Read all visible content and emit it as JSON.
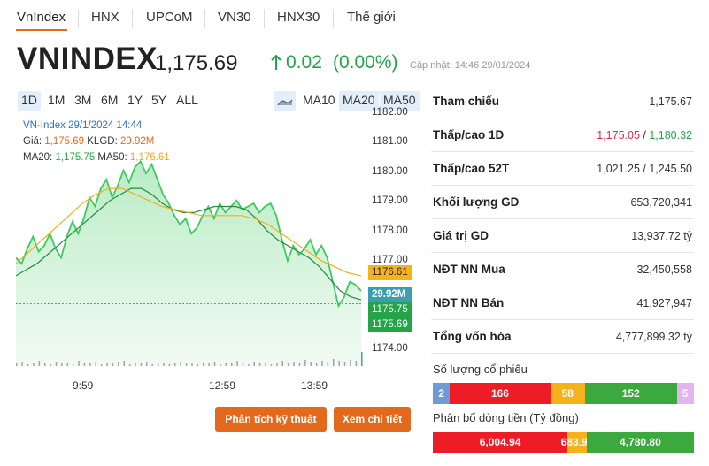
{
  "tabs": [
    {
      "label": "VnIndex",
      "active": true
    },
    {
      "label": "HNX"
    },
    {
      "label": "UPCoM"
    },
    {
      "label": "VN30"
    },
    {
      "label": "HNX30"
    },
    {
      "label": "Thế giới"
    }
  ],
  "header": {
    "name": "VNINDEX",
    "price": "1,175.69",
    "change": "0.02",
    "change_pct": "(0.00%)",
    "updated": "Cập nhật: 14:46 29/01/2024"
  },
  "ranges": [
    "1D",
    "1M",
    "3M",
    "6M",
    "1Y",
    "5Y",
    "ALL"
  ],
  "ma_buttons": [
    "MA10",
    "MA20",
    "MA50"
  ],
  "chart_legend": {
    "line1": "VN-Index 29/1/2024 14:44",
    "price_label": "Giá:",
    "price_value": "1,175.69",
    "vol_label": "KLGD:",
    "vol_value": "29.92M",
    "ma20_label": "MA20:",
    "ma20_value": "1,175.75",
    "ma50_label": "MA50:",
    "ma50_value": "1,176.61"
  },
  "chart_data": {
    "type": "area",
    "y_ticks": [
      "1182.00",
      "1181.00",
      "1180.00",
      "1179.00",
      "1178.00",
      "1177.00",
      "1174.00"
    ],
    "x_ticks": [
      "9:59",
      "12:59",
      "13:59"
    ],
    "ylim": [
      1173.6,
      1182.0
    ],
    "price": [
      1177.2,
      1177.0,
      1177.5,
      1177.9,
      1177.4,
      1177.6,
      1178.0,
      1177.5,
      1177.2,
      1177.9,
      1178.4,
      1178.0,
      1178.5,
      1179.2,
      1178.9,
      1179.5,
      1179.8,
      1179.2,
      1179.6,
      1180.1,
      1179.7,
      1180.2,
      1180.4,
      1180.0,
      1180.3,
      1179.8,
      1179.3,
      1179.0,
      1178.6,
      1178.3,
      1178.5,
      1178.0,
      1178.2,
      1178.6,
      1178.9,
      1178.5,
      1179.0,
      1178.7,
      1178.9,
      1179.1,
      1178.8,
      1178.9,
      1179.0,
      1178.7,
      1178.9,
      1179.0,
      1178.6,
      1177.8,
      1177.1,
      1177.6,
      1177.3,
      1177.5,
      1177.8,
      1177.3,
      1177.6,
      1177.2,
      1176.4,
      1175.6,
      1175.9,
      1176.4,
      1176.3,
      1176.1
    ],
    "ma20": [
      1176.6,
      1176.8,
      1177.0,
      1177.3,
      1177.6,
      1177.9,
      1178.2,
      1178.5,
      1178.8,
      1179.1,
      1179.3,
      1179.5,
      1179.5,
      1179.3,
      1179.0,
      1178.8,
      1178.7,
      1178.7,
      1178.8,
      1178.9,
      1178.9,
      1178.9,
      1178.8,
      1178.5,
      1178.1,
      1177.8,
      1177.6,
      1177.4,
      1177.2,
      1176.9,
      1176.5,
      1176.1,
      1175.9,
      1175.8
    ],
    "ma50": [
      1177.0,
      1177.4,
      1177.8,
      1178.2,
      1178.6,
      1179.0,
      1179.3,
      1179.5,
      1179.5,
      1179.3,
      1179.1,
      1178.9,
      1178.8,
      1178.7,
      1178.6,
      1178.6,
      1178.6,
      1178.6,
      1178.5,
      1178.3,
      1178.0,
      1177.7,
      1177.4,
      1177.1,
      1176.9,
      1176.7,
      1176.6
    ],
    "volume": [
      3,
      5,
      2,
      4,
      6,
      3,
      2,
      5,
      4,
      3,
      2,
      6,
      4,
      3,
      5,
      2,
      4,
      3,
      5,
      6,
      2,
      4,
      3,
      5,
      2,
      3,
      4,
      2,
      3,
      5,
      4,
      3,
      2,
      4,
      3,
      5,
      2,
      3,
      4,
      6,
      3,
      2,
      5,
      4,
      3,
      2,
      4,
      6,
      3,
      5,
      4,
      7,
      5,
      4,
      6,
      5,
      8,
      6,
      5,
      7,
      6,
      16
    ]
  },
  "chart_tags": {
    "ma50": "1176.61",
    "volume": "29.92M",
    "ma20": "1175.75",
    "price": "1175.69"
  },
  "buttons": {
    "technical": "Phân tích kỹ thuật",
    "details": "Xem chi tiết"
  },
  "stats": [
    {
      "label": "Tham chiếu",
      "value": "1,175.67"
    },
    {
      "label": "Thấp/cao 1D",
      "low": "1,175.05",
      "sep": " / ",
      "high": "1,180.32"
    },
    {
      "label": "Thấp/cao 52T",
      "value": "1,021.25 / 1,245.50"
    },
    {
      "label": "Khối lượng GD",
      "value": "653,720,341"
    },
    {
      "label": "Giá trị GD",
      "value": "13,937.72 tỷ"
    },
    {
      "label": "NĐT NN Mua",
      "value": "32,450,558"
    },
    {
      "label": "NĐT NN Bán",
      "value": "41,927,947"
    },
    {
      "label": "Tổng vốn hóa",
      "value": "4,777,899.32 tỷ"
    }
  ],
  "stock_count": {
    "title": "Số lượng cổ phiếu",
    "segments": [
      {
        "value": "2",
        "share": 2,
        "color": "#6c9bd8"
      },
      {
        "value": "166",
        "share": 166,
        "color": "#ee1c25"
      },
      {
        "value": "58",
        "share": 58,
        "color": "#f5b21a"
      },
      {
        "value": "152",
        "share": 152,
        "color": "#3ba93d"
      },
      {
        "value": "5",
        "share": 5,
        "color": "#e5b4f0"
      }
    ]
  },
  "money_flow": {
    "title": "Phân bổ dòng tiền (Tỷ đồng)",
    "segments": [
      {
        "value": "6,004.94",
        "share": 6004.94,
        "color": "#ee1c25"
      },
      {
        "value": "683.91",
        "share": 683.91,
        "color": "#f5b21a"
      },
      {
        "value": "4,780.80",
        "share": 4780.8,
        "color": "#3ba93d"
      }
    ]
  }
}
